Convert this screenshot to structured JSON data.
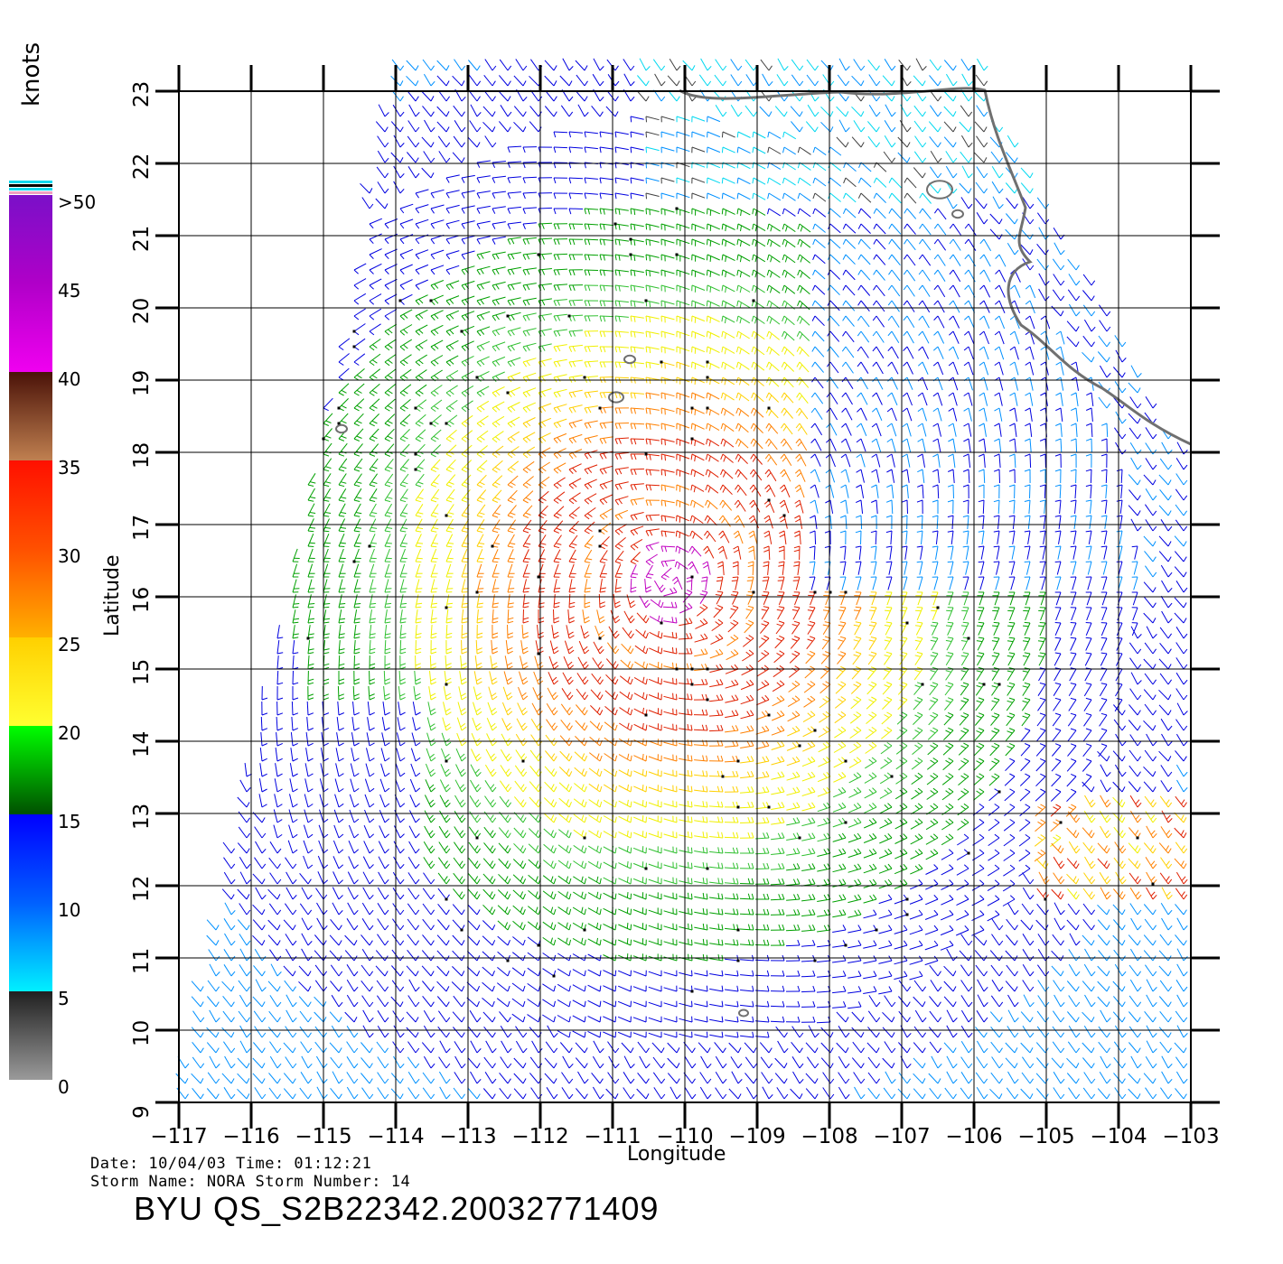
{
  "figure": {
    "units_label": "knots",
    "x_axis_title": "Longitude",
    "y_axis_title": "Latitude",
    "x_ticks": [
      "−117",
      "−116",
      "−115",
      "−114",
      "−113",
      "−112",
      "−111",
      "−110",
      "−109",
      "−108",
      "−107",
      "−106",
      "−105",
      "−104",
      "−103"
    ],
    "y_ticks": [
      "9",
      "10",
      "11",
      "12",
      "13",
      "14",
      "15",
      "16",
      "17",
      "18",
      "19",
      "20",
      "21",
      "22",
      "23"
    ],
    "date_line": "Date: 10/04/03   Time: 01:12:21",
    "storm_line": "Storm  Name: NORA   Storm  Number: 14",
    "file_label": "BYU  QS_S2B22342.20032771409"
  },
  "colorbar": {
    "labels": [
      ">50",
      "45",
      "40",
      "35",
      "30",
      "25",
      "20",
      "15",
      "10",
      "5",
      "0"
    ],
    "bands": [
      "#7a10c8",
      "#b000c8",
      "#f000f0",
      "#5a1a0a",
      "#c08050",
      "#ff1000",
      "#ff6000",
      "#ffd000",
      "#ffff30",
      "#00ff00",
      "#006400",
      "#0000ff",
      "#0090ff",
      "#00eaff",
      "#202020",
      "#909090"
    ]
  },
  "storm": {
    "name": "NORA",
    "center_lon": -110.2,
    "center_lat": 16.2,
    "max_wind_knots": 45
  }
}
